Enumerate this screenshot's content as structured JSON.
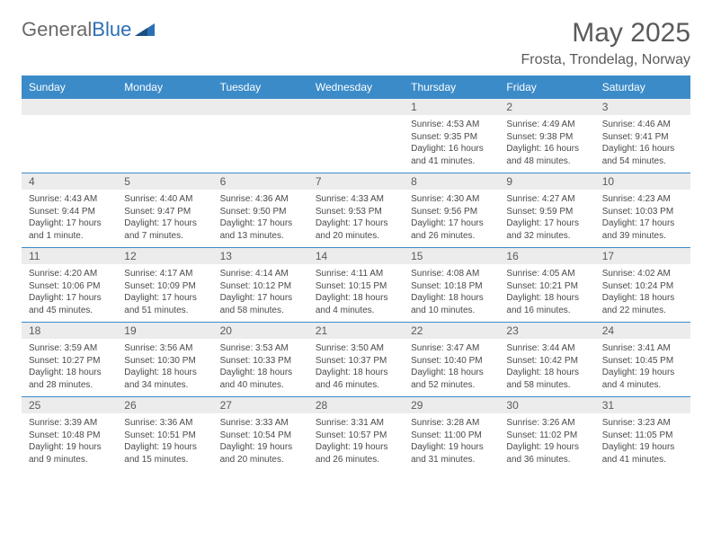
{
  "logo": {
    "general": "General",
    "blue": "Blue"
  },
  "title": "May 2025",
  "location": "Frosta, Trondelag, Norway",
  "weekdays": [
    "Sunday",
    "Monday",
    "Tuesday",
    "Wednesday",
    "Thursday",
    "Friday",
    "Saturday"
  ],
  "header_bg": "#3b8bc9",
  "daynum_bg": "#ececec",
  "divider_color": "#3b8bc9",
  "weeks": [
    [
      {
        "empty": true
      },
      {
        "empty": true
      },
      {
        "empty": true
      },
      {
        "empty": true
      },
      {
        "num": "1",
        "sunrise": "Sunrise: 4:53 AM",
        "sunset": "Sunset: 9:35 PM",
        "daylight": "Daylight: 16 hours and 41 minutes."
      },
      {
        "num": "2",
        "sunrise": "Sunrise: 4:49 AM",
        "sunset": "Sunset: 9:38 PM",
        "daylight": "Daylight: 16 hours and 48 minutes."
      },
      {
        "num": "3",
        "sunrise": "Sunrise: 4:46 AM",
        "sunset": "Sunset: 9:41 PM",
        "daylight": "Daylight: 16 hours and 54 minutes."
      }
    ],
    [
      {
        "num": "4",
        "sunrise": "Sunrise: 4:43 AM",
        "sunset": "Sunset: 9:44 PM",
        "daylight": "Daylight: 17 hours and 1 minute."
      },
      {
        "num": "5",
        "sunrise": "Sunrise: 4:40 AM",
        "sunset": "Sunset: 9:47 PM",
        "daylight": "Daylight: 17 hours and 7 minutes."
      },
      {
        "num": "6",
        "sunrise": "Sunrise: 4:36 AM",
        "sunset": "Sunset: 9:50 PM",
        "daylight": "Daylight: 17 hours and 13 minutes."
      },
      {
        "num": "7",
        "sunrise": "Sunrise: 4:33 AM",
        "sunset": "Sunset: 9:53 PM",
        "daylight": "Daylight: 17 hours and 20 minutes."
      },
      {
        "num": "8",
        "sunrise": "Sunrise: 4:30 AM",
        "sunset": "Sunset: 9:56 PM",
        "daylight": "Daylight: 17 hours and 26 minutes."
      },
      {
        "num": "9",
        "sunrise": "Sunrise: 4:27 AM",
        "sunset": "Sunset: 9:59 PM",
        "daylight": "Daylight: 17 hours and 32 minutes."
      },
      {
        "num": "10",
        "sunrise": "Sunrise: 4:23 AM",
        "sunset": "Sunset: 10:03 PM",
        "daylight": "Daylight: 17 hours and 39 minutes."
      }
    ],
    [
      {
        "num": "11",
        "sunrise": "Sunrise: 4:20 AM",
        "sunset": "Sunset: 10:06 PM",
        "daylight": "Daylight: 17 hours and 45 minutes."
      },
      {
        "num": "12",
        "sunrise": "Sunrise: 4:17 AM",
        "sunset": "Sunset: 10:09 PM",
        "daylight": "Daylight: 17 hours and 51 minutes."
      },
      {
        "num": "13",
        "sunrise": "Sunrise: 4:14 AM",
        "sunset": "Sunset: 10:12 PM",
        "daylight": "Daylight: 17 hours and 58 minutes."
      },
      {
        "num": "14",
        "sunrise": "Sunrise: 4:11 AM",
        "sunset": "Sunset: 10:15 PM",
        "daylight": "Daylight: 18 hours and 4 minutes."
      },
      {
        "num": "15",
        "sunrise": "Sunrise: 4:08 AM",
        "sunset": "Sunset: 10:18 PM",
        "daylight": "Daylight: 18 hours and 10 minutes."
      },
      {
        "num": "16",
        "sunrise": "Sunrise: 4:05 AM",
        "sunset": "Sunset: 10:21 PM",
        "daylight": "Daylight: 18 hours and 16 minutes."
      },
      {
        "num": "17",
        "sunrise": "Sunrise: 4:02 AM",
        "sunset": "Sunset: 10:24 PM",
        "daylight": "Daylight: 18 hours and 22 minutes."
      }
    ],
    [
      {
        "num": "18",
        "sunrise": "Sunrise: 3:59 AM",
        "sunset": "Sunset: 10:27 PM",
        "daylight": "Daylight: 18 hours and 28 minutes."
      },
      {
        "num": "19",
        "sunrise": "Sunrise: 3:56 AM",
        "sunset": "Sunset: 10:30 PM",
        "daylight": "Daylight: 18 hours and 34 minutes."
      },
      {
        "num": "20",
        "sunrise": "Sunrise: 3:53 AM",
        "sunset": "Sunset: 10:33 PM",
        "daylight": "Daylight: 18 hours and 40 minutes."
      },
      {
        "num": "21",
        "sunrise": "Sunrise: 3:50 AM",
        "sunset": "Sunset: 10:37 PM",
        "daylight": "Daylight: 18 hours and 46 minutes."
      },
      {
        "num": "22",
        "sunrise": "Sunrise: 3:47 AM",
        "sunset": "Sunset: 10:40 PM",
        "daylight": "Daylight: 18 hours and 52 minutes."
      },
      {
        "num": "23",
        "sunrise": "Sunrise: 3:44 AM",
        "sunset": "Sunset: 10:42 PM",
        "daylight": "Daylight: 18 hours and 58 minutes."
      },
      {
        "num": "24",
        "sunrise": "Sunrise: 3:41 AM",
        "sunset": "Sunset: 10:45 PM",
        "daylight": "Daylight: 19 hours and 4 minutes."
      }
    ],
    [
      {
        "num": "25",
        "sunrise": "Sunrise: 3:39 AM",
        "sunset": "Sunset: 10:48 PM",
        "daylight": "Daylight: 19 hours and 9 minutes."
      },
      {
        "num": "26",
        "sunrise": "Sunrise: 3:36 AM",
        "sunset": "Sunset: 10:51 PM",
        "daylight": "Daylight: 19 hours and 15 minutes."
      },
      {
        "num": "27",
        "sunrise": "Sunrise: 3:33 AM",
        "sunset": "Sunset: 10:54 PM",
        "daylight": "Daylight: 19 hours and 20 minutes."
      },
      {
        "num": "28",
        "sunrise": "Sunrise: 3:31 AM",
        "sunset": "Sunset: 10:57 PM",
        "daylight": "Daylight: 19 hours and 26 minutes."
      },
      {
        "num": "29",
        "sunrise": "Sunrise: 3:28 AM",
        "sunset": "Sunset: 11:00 PM",
        "daylight": "Daylight: 19 hours and 31 minutes."
      },
      {
        "num": "30",
        "sunrise": "Sunrise: 3:26 AM",
        "sunset": "Sunset: 11:02 PM",
        "daylight": "Daylight: 19 hours and 36 minutes."
      },
      {
        "num": "31",
        "sunrise": "Sunrise: 3:23 AM",
        "sunset": "Sunset: 11:05 PM",
        "daylight": "Daylight: 19 hours and 41 minutes."
      }
    ]
  ]
}
